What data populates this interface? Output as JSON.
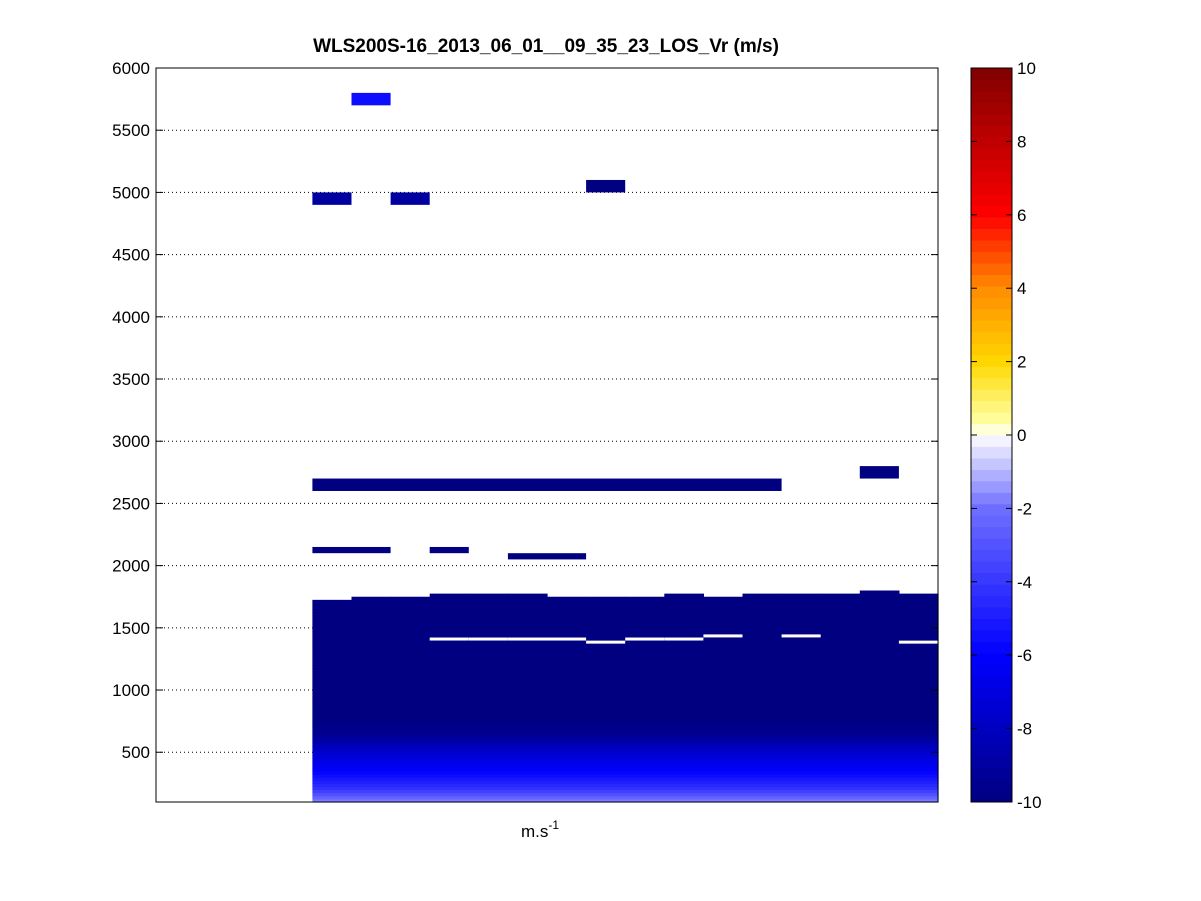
{
  "chart_data": {
    "type": "heatmap",
    "title": "WLS200S-16_2013_06_01__09_35_23_LOS_Vr (m/s)",
    "xlabel": "m.s",
    "xlabel_superscript": "-1",
    "ylabel": "",
    "ylim": [
      100,
      6000
    ],
    "y_ticks": [
      500,
      1000,
      1500,
      2000,
      2500,
      3000,
      3500,
      4000,
      4500,
      5000,
      5500,
      6000
    ],
    "y_tick_labels": [
      "500",
      "1000",
      "1500",
      "2000",
      "2500",
      "3000",
      "3500",
      "4000",
      "4500",
      "5000",
      "5500",
      "6000"
    ],
    "grid": "horizontal dotted",
    "colorbar": {
      "range": [
        -10,
        10
      ],
      "ticks": [
        -10,
        -8,
        -6,
        -4,
        -2,
        0,
        2,
        4,
        6,
        8,
        10
      ],
      "tick_labels": [
        "-10",
        "-8",
        "-6",
        "-4",
        "-2",
        "0",
        "2",
        "4",
        "6",
        "8",
        "10"
      ],
      "colormap": "blue-white-red"
    },
    "x_columns": 20,
    "x_columns_note_free": true,
    "cells": [
      {
        "col_start": 5,
        "col_end": 5,
        "y0": 5700,
        "y1": 5800,
        "value": -5.5
      },
      {
        "col_start": 4,
        "col_end": 4,
        "y0": 4900,
        "y1": 5000,
        "value": -9
      },
      {
        "col_start": 6,
        "col_end": 6,
        "y0": 4900,
        "y1": 5000,
        "value": -9
      },
      {
        "col_start": 11,
        "col_end": 11,
        "y0": 5000,
        "y1": 5100,
        "value": -10
      },
      {
        "col_start": 4,
        "col_end": 15,
        "y0": 2600,
        "y1": 2700,
        "value": -10
      },
      {
        "col_start": 18,
        "col_end": 18,
        "y0": 2700,
        "y1": 2800,
        "value": -10
      },
      {
        "col_start": 4,
        "col_end": 5,
        "y0": 2100,
        "y1": 2150,
        "value": -10
      },
      {
        "col_start": 7,
        "col_end": 7,
        "y0": 2100,
        "y1": 2150,
        "value": -10
      },
      {
        "col_start": 9,
        "col_end": 10,
        "y0": 2050,
        "y1": 2100,
        "value": -10
      }
    ],
    "profile_columns": [
      {
        "col": 4,
        "top": 1725,
        "gaps": []
      },
      {
        "col": 5,
        "top": 1750,
        "gaps": []
      },
      {
        "col": 6,
        "top": 1750,
        "gaps": []
      },
      {
        "col": 7,
        "top": 1775,
        "gaps": [
          1410
        ]
      },
      {
        "col": 8,
        "top": 1775,
        "gaps": [
          1410
        ]
      },
      {
        "col": 9,
        "top": 1775,
        "gaps": [
          1410
        ]
      },
      {
        "col": 10,
        "top": 1750,
        "gaps": [
          1410
        ]
      },
      {
        "col": 11,
        "top": 1750,
        "gaps": [
          1385
        ]
      },
      {
        "col": 12,
        "top": 1750,
        "gaps": [
          1410
        ]
      },
      {
        "col": 13,
        "top": 1775,
        "gaps": [
          1410
        ]
      },
      {
        "col": 14,
        "top": 1750,
        "gaps": [
          1435
        ]
      },
      {
        "col": 15,
        "top": 1775,
        "gaps": []
      },
      {
        "col": 16,
        "top": 1775,
        "gaps": [
          1435
        ]
      },
      {
        "col": 17,
        "top": 1775,
        "gaps": []
      },
      {
        "col": 18,
        "top": 1800,
        "gaps": []
      },
      {
        "col": 19,
        "top": 1775,
        "gaps": [
          1385
        ]
      }
    ],
    "profile_value_by_height": [
      {
        "y": 100,
        "value": -1.5
      },
      {
        "y": 200,
        "value": -4
      },
      {
        "y": 350,
        "value": -6
      },
      {
        "y": 500,
        "value": -7.5
      },
      {
        "y": 650,
        "value": -9.5
      },
      {
        "y": 800,
        "value": -10
      }
    ]
  }
}
